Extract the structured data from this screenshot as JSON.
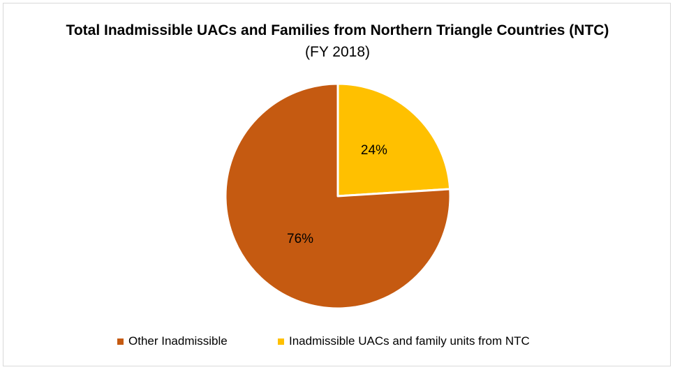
{
  "chart_data": {
    "type": "pie",
    "title": {
      "bold_part": "Total Inadmissible UACs and Families from Northern Triangle Countries (NTC)",
      "normal_part": "(FY 2018)"
    },
    "slices": [
      {
        "label": "Inadmissible UACs and family units from NTC",
        "value": 24,
        "data_label": "24%",
        "color": "#ffc000"
      },
      {
        "label": "Other Inadmissible",
        "value": 76,
        "data_label": "76%",
        "color": "#c55a11"
      }
    ],
    "legend": {
      "placement": "bottom",
      "items": [
        {
          "label": "Other Inadmissible",
          "color": "#c55a11"
        },
        {
          "label": "Inadmissible UACs and family units from NTC",
          "color": "#ffc000"
        }
      ]
    }
  }
}
